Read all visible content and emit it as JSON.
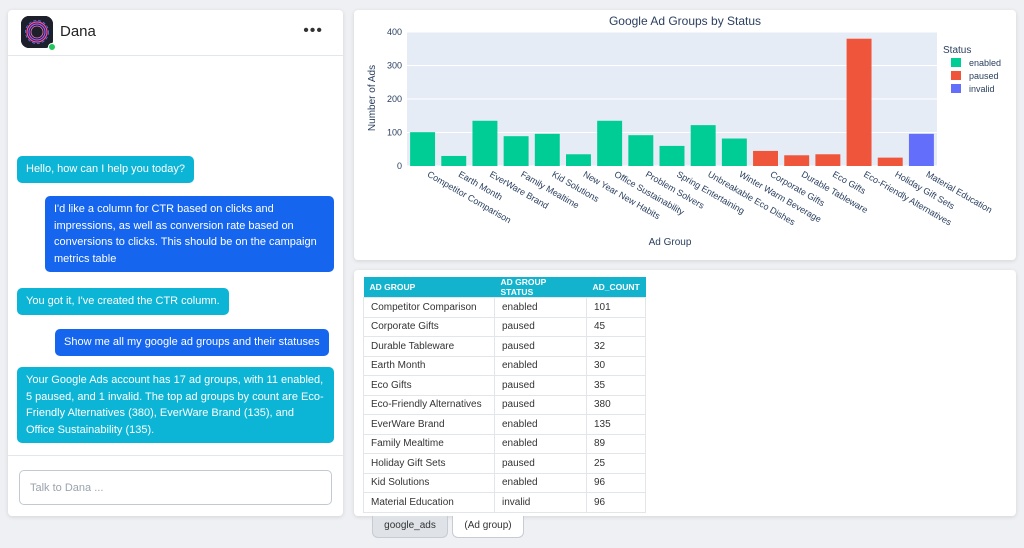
{
  "chat": {
    "agent_name": "Dana",
    "menu_label": "•••",
    "messages": [
      {
        "role": "bot",
        "text": "Hello, how can I help you today?"
      },
      {
        "role": "user",
        "text": "I'd like a column for CTR based on clicks and impressions, as well as conversion rate based on conversions to clicks. This should be on the campaign metrics table"
      },
      {
        "role": "bot",
        "text": "You got it, I've created the CTR column."
      },
      {
        "role": "user",
        "text": "Show me all my google ad groups and their statuses"
      },
      {
        "role": "bot",
        "text": "Your Google Ads account has 17 ad groups, with 11 enabled, 5 paused, and 1 invalid. The top ad groups by count are Eco-Friendly Alternatives (380), EverWare Brand (135), and Office Sustainability (135)."
      }
    ],
    "input_placeholder": "Talk to Dana ..."
  },
  "chart_data": {
    "type": "bar",
    "title": "Google Ad Groups by Status",
    "xlabel": "Ad Group",
    "ylabel": "Number of Ads",
    "ylim": [
      0,
      400
    ],
    "yticks": [
      0,
      100,
      200,
      300,
      400
    ],
    "legend_title": "Status",
    "legend_position": "right",
    "grid": true,
    "series": [
      {
        "name": "enabled",
        "color": "#00cc96",
        "points": [
          {
            "x": "Competitor Comparison",
            "y": 101
          },
          {
            "x": "Earth Month",
            "y": 30
          },
          {
            "x": "EverWare Brand",
            "y": 135
          },
          {
            "x": "Family Mealtime",
            "y": 89
          },
          {
            "x": "Kid Solutions",
            "y": 96
          },
          {
            "x": "New Year New Habits",
            "y": 35
          },
          {
            "x": "Office Sustainability",
            "y": 135
          },
          {
            "x": "Problem Solvers",
            "y": 92
          },
          {
            "x": "Spring Entertaining",
            "y": 60
          },
          {
            "x": "Unbreakable Eco Dishes",
            "y": 122
          },
          {
            "x": "Winter Warm Beverage",
            "y": 82
          }
        ]
      },
      {
        "name": "paused",
        "color": "#ef553b",
        "points": [
          {
            "x": "Corporate Gifts",
            "y": 45
          },
          {
            "x": "Durable Tableware",
            "y": 32
          },
          {
            "x": "Eco Gifts",
            "y": 35
          },
          {
            "x": "Eco-Friendly Alternatives",
            "y": 380
          },
          {
            "x": "Holiday Gift Sets",
            "y": 25
          }
        ]
      },
      {
        "name": "invalid",
        "color": "#636efa",
        "points": [
          {
            "x": "Material Education",
            "y": 96
          }
        ]
      }
    ],
    "categories": [
      "Competitor Comparison",
      "Earth Month",
      "EverWare Brand",
      "Family Mealtime",
      "Kid Solutions",
      "New Year New Habits",
      "Office Sustainability",
      "Problem Solvers",
      "Spring Entertaining",
      "Unbreakable Eco Dishes",
      "Winter Warm Beverage",
      "Corporate Gifts",
      "Durable Tableware",
      "Eco Gifts",
      "Eco-Friendly Alternatives",
      "Holiday Gift Sets",
      "Material Education"
    ]
  },
  "table": {
    "headers": [
      "AD GROUP",
      "AD GROUP STATUS",
      "AD_COUNT"
    ],
    "rows": [
      [
        "Competitor Comparison",
        "enabled",
        "101"
      ],
      [
        "Corporate Gifts",
        "paused",
        "45"
      ],
      [
        "Durable Tableware",
        "paused",
        "32"
      ],
      [
        "Earth Month",
        "enabled",
        "30"
      ],
      [
        "Eco Gifts",
        "paused",
        "35"
      ],
      [
        "Eco-Friendly Alternatives",
        "paused",
        "380"
      ],
      [
        "EverWare Brand",
        "enabled",
        "135"
      ],
      [
        "Family Mealtime",
        "enabled",
        "89"
      ],
      [
        "Holiday Gift Sets",
        "paused",
        "25"
      ],
      [
        "Kid Solutions",
        "enabled",
        "96"
      ],
      [
        "Material Education",
        "invalid",
        "96"
      ]
    ]
  },
  "tabs": [
    {
      "label": "google_ads",
      "active": true
    },
    {
      "label": "(Ad group)",
      "active": false
    }
  ]
}
